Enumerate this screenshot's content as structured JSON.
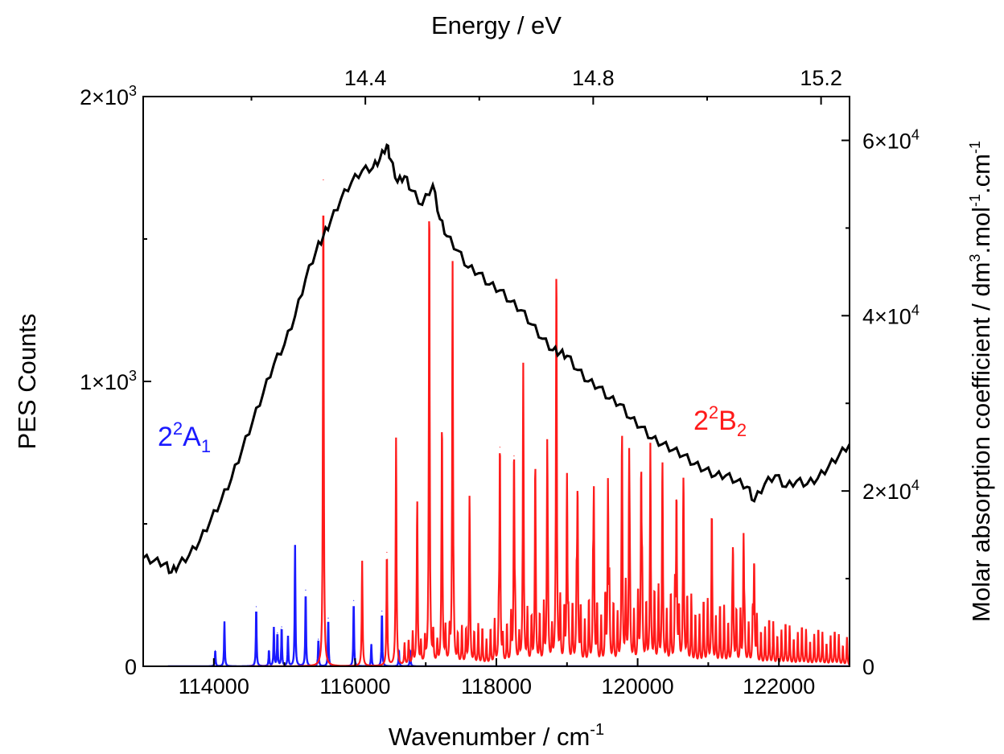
{
  "chart_data": {
    "type": "line",
    "xlabel": "Wavenumber / cm",
    "xlabel_sup": "-1",
    "x2label": "Energy / eV",
    "ylabel": "PES Counts",
    "y2label_parts": [
      "Molar absorption coefficient / dm",
      "3",
      ".mol",
      "-1",
      ".cm",
      "-1"
    ],
    "xlim": [
      113000,
      123000
    ],
    "x2lim": [
      14.01,
      15.25
    ],
    "ylim": [
      0,
      2000
    ],
    "y2lim": [
      0,
      65000
    ],
    "x_ticks": [
      "114000",
      "116000",
      "118000",
      "120000",
      "122000"
    ],
    "x_tick_values": [
      114000,
      116000,
      118000,
      120000,
      122000
    ],
    "x2_ticks": [
      "14.4",
      "14.8",
      "15.2"
    ],
    "x2_tick_values": [
      14.4,
      14.8,
      15.2
    ],
    "y_ticks": [
      {
        "base": "0",
        "exp": ""
      },
      {
        "base": "1×10",
        "exp": "3"
      },
      {
        "base": "2×10",
        "exp": "3"
      }
    ],
    "y_tick_values": [
      0,
      1000,
      2000
    ],
    "y2_ticks": [
      {
        "base": "0",
        "exp": ""
      },
      {
        "base": "2×10",
        "exp": "4"
      },
      {
        "base": "4×10",
        "exp": "4"
      },
      {
        "base": "6×10",
        "exp": "4"
      }
    ],
    "y2_tick_values": [
      0,
      20000,
      40000,
      60000
    ],
    "annotations": [
      {
        "main": "2",
        "sup": "2",
        "letter": "A",
        "sub": "1",
        "color": "#1a1aff"
      },
      {
        "main": "2",
        "sup": "2",
        "letter": "B",
        "sub": "2",
        "color": "#ff1a1a"
      }
    ],
    "series": [
      {
        "axis": "left",
        "color": "#000000",
        "x": [
          113000,
          113150,
          113300,
          113400,
          113500,
          113650,
          113800,
          113950,
          114100,
          114250,
          114400,
          114550,
          114700,
          114850,
          115000,
          115150,
          115300,
          115450,
          115550,
          115650,
          115800,
          115950,
          116100,
          116250,
          116350,
          116450,
          116500,
          116600,
          116700,
          116800,
          116950,
          117100,
          117200,
          117300,
          117450,
          117600,
          117750,
          117900,
          118050,
          118200,
          118350,
          118500,
          118650,
          118800,
          118900,
          119000,
          119150,
          119300,
          119450,
          119600,
          119750,
          119900,
          120050,
          120200,
          120350,
          120500,
          120650,
          120800,
          120950,
          121100,
          121250,
          121400,
          121550,
          121650,
          121800,
          121950,
          122100,
          122250,
          122400,
          122550,
          122700,
          122850,
          123000
        ],
        "y": [
          380,
          370,
          360,
          330,
          355,
          390,
          440,
          510,
          580,
          660,
          760,
          860,
          960,
          1060,
          1130,
          1230,
          1360,
          1460,
          1510,
          1560,
          1640,
          1700,
          1740,
          1750,
          1780,
          1830,
          1780,
          1700,
          1720,
          1670,
          1620,
          1690,
          1570,
          1510,
          1460,
          1400,
          1380,
          1340,
          1320,
          1280,
          1250,
          1200,
          1150,
          1110,
          1100,
          1090,
          1040,
          1000,
          980,
          940,
          920,
          870,
          840,
          800,
          780,
          760,
          740,
          710,
          690,
          670,
          670,
          650,
          630,
          580,
          640,
          670,
          630,
          650,
          640,
          660,
          700,
          740,
          780
        ]
      },
      {
        "axis": "right",
        "color": "#ff1a1a",
        "peaks_x": [
          115550,
          116100,
          116450,
          116580,
          116880,
          117050,
          117230,
          117380,
          117620,
          118050,
          118250,
          118380,
          118550,
          118720,
          118850,
          119000,
          119150,
          119380,
          119580,
          119780,
          119880,
          120050,
          120180,
          120350,
          120550,
          120650,
          121050,
          121350,
          121500,
          121650
        ],
        "peaks_y": [
          55500,
          12000,
          13000,
          26000,
          16500,
          50500,
          26500,
          45500,
          18000,
          25000,
          24000,
          29500,
          21000,
          23500,
          41000,
          21000,
          19000,
          18000,
          20000,
          21000,
          22000,
          21000,
          19000,
          18000,
          19000,
          18000,
          12500,
          12000,
          14000,
          11500
        ]
      },
      {
        "axis": "right",
        "color": "#1a1aff",
        "peaks_x": [
          114020,
          114150,
          114600,
          114780,
          114850,
          114900,
          114960,
          115050,
          115150,
          115300,
          115480,
          115620,
          115980,
          116230,
          116380,
          116620,
          116780
        ],
        "peaks_y": [
          1800,
          5100,
          6800,
          1800,
          4400,
          3800,
          4500,
          3400,
          13800,
          8700,
          3100,
          5500,
          7500,
          2500,
          6300,
          1900,
          1900
        ]
      }
    ]
  }
}
